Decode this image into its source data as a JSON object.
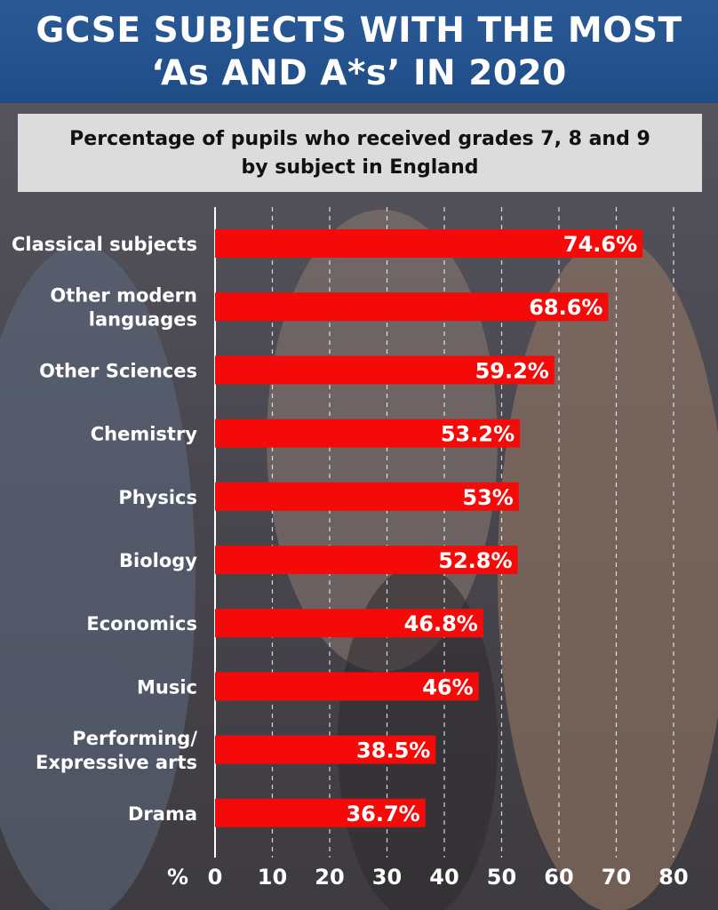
{
  "header": {
    "title_line1": "GCSE SUBJECTS WITH THE MOST",
    "title_line2": "‘As AND A*s’ IN 2020"
  },
  "subtitle": {
    "line1": "Percentage of pupils who received grades 7, 8 and 9",
    "line2": "by subject in England"
  },
  "colors": {
    "bar": "#f50a0a",
    "header": "#215089",
    "gridline": "#ffffff"
  },
  "chart_data": {
    "type": "bar",
    "orientation": "horizontal",
    "categories": [
      [
        "Classical subjects"
      ],
      [
        "Other modern",
        "languages"
      ],
      [
        "Other Sciences"
      ],
      [
        "Chemistry"
      ],
      [
        "Physics"
      ],
      [
        "Biology"
      ],
      [
        "Economics"
      ],
      [
        "Music"
      ],
      [
        "Performing/",
        "Expressive arts"
      ],
      [
        "Drama"
      ]
    ],
    "values": [
      74.6,
      68.6,
      59.2,
      53.2,
      53,
      52.8,
      46.8,
      46,
      38.5,
      36.7
    ],
    "value_labels": [
      "74.6%",
      "68.6%",
      "59.2%",
      "53.2%",
      "53%",
      "52.8%",
      "46.8%",
      "46%",
      "38.5%",
      "36.7%"
    ],
    "xlim": [
      0,
      80
    ],
    "xticks": [
      0,
      10,
      20,
      30,
      40,
      50,
      60,
      70,
      80
    ],
    "xlabel": "%",
    "grid": true
  }
}
